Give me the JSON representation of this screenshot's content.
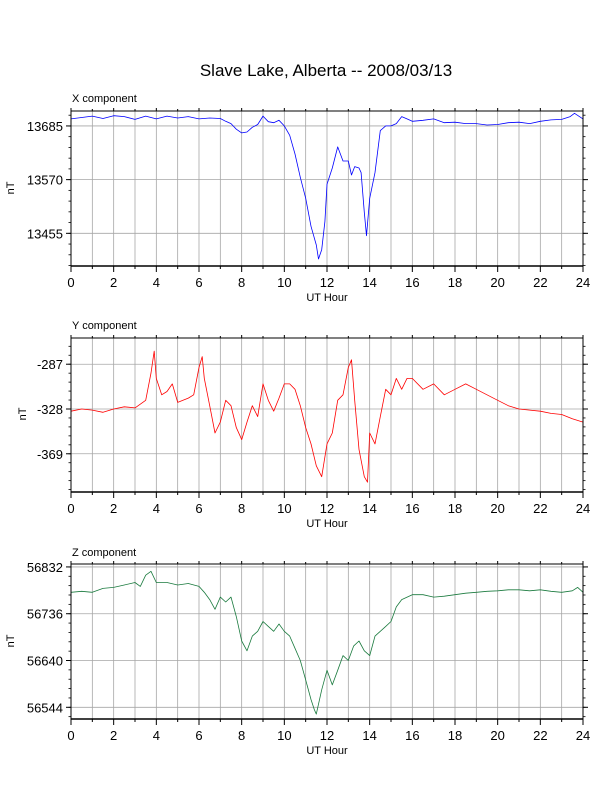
{
  "page_title": "Slave Lake, Alberta -- 2008/03/13",
  "chart_data": [
    {
      "type": "line",
      "panel_label": "X component",
      "xlabel": "UT Hour",
      "ylabel": "nT",
      "xlim": [
        0,
        24
      ],
      "x_ticks": [
        0,
        2,
        4,
        6,
        8,
        10,
        12,
        14,
        16,
        18,
        20,
        22,
        24
      ],
      "ylim": [
        13385,
        13717
      ],
      "y_ticks": [
        13455,
        13570,
        13685
      ],
      "grid": true,
      "series": [
        {
          "color": "#0000ff",
          "x": [
            0,
            0.5,
            1,
            1.5,
            2,
            2.5,
            3,
            3.5,
            4,
            4.5,
            5,
            5.5,
            6,
            6.5,
            7,
            7.25,
            7.5,
            7.75,
            8,
            8.25,
            8.5,
            8.75,
            9,
            9.25,
            9.5,
            9.75,
            10,
            10.25,
            10.5,
            10.75,
            11,
            11.25,
            11.5,
            11.6,
            11.75,
            11.9,
            12,
            12.25,
            12.5,
            12.75,
            13,
            13.15,
            13.3,
            13.5,
            13.6,
            13.75,
            13.85,
            14,
            14.25,
            14.5,
            14.75,
            15,
            15.25,
            15.5,
            15.75,
            16,
            16.5,
            17,
            17.5,
            18,
            18.5,
            19,
            19.5,
            20,
            20.5,
            21,
            21.5,
            22,
            22.5,
            23,
            23.4,
            23.6,
            24
          ],
          "y": [
            13700,
            13703,
            13706,
            13701,
            13707,
            13705,
            13699,
            13706,
            13700,
            13706,
            13702,
            13705,
            13700,
            13702,
            13701,
            13695,
            13690,
            13678,
            13670,
            13672,
            13682,
            13688,
            13706,
            13694,
            13692,
            13697,
            13685,
            13665,
            13625,
            13575,
            13530,
            13470,
            13430,
            13400,
            13420,
            13480,
            13560,
            13595,
            13640,
            13610,
            13610,
            13580,
            13598,
            13595,
            13585,
            13500,
            13450,
            13530,
            13585,
            13675,
            13685,
            13685,
            13690,
            13705,
            13700,
            13695,
            13697,
            13700,
            13692,
            13693,
            13690,
            13690,
            13687,
            13688,
            13692,
            13693,
            13690,
            13695,
            13698,
            13699,
            13705,
            13712,
            13700
          ]
        }
      ]
    },
    {
      "type": "line",
      "panel_label": "Y component",
      "xlabel": "UT Hour",
      "ylabel": "nT",
      "xlim": [
        0,
        24
      ],
      "x_ticks": [
        0,
        2,
        4,
        6,
        8,
        10,
        12,
        14,
        16,
        18,
        20,
        22,
        24
      ],
      "ylim": [
        -404,
        -263
      ],
      "y_ticks": [
        -287,
        -328,
        -369
      ],
      "grid": true,
      "series": [
        {
          "color": "#ff0000",
          "x": [
            0,
            0.5,
            1,
            1.5,
            2,
            2.5,
            3,
            3.5,
            3.75,
            3.9,
            4,
            4.25,
            4.5,
            4.75,
            5,
            5.25,
            5.5,
            5.75,
            6,
            6.15,
            6.25,
            6.5,
            6.75,
            7,
            7.25,
            7.5,
            7.75,
            8,
            8.25,
            8.5,
            8.75,
            9,
            9.25,
            9.5,
            9.75,
            10,
            10.25,
            10.5,
            10.75,
            11,
            11.25,
            11.5,
            11.75,
            12,
            12.25,
            12.5,
            12.75,
            13,
            13.15,
            13.3,
            13.5,
            13.75,
            13.9,
            14,
            14.25,
            14.5,
            14.75,
            15,
            15.25,
            15.5,
            15.75,
            16,
            16.5,
            17,
            17.5,
            18,
            18.5,
            19,
            19.5,
            20,
            20.5,
            21,
            21.5,
            22,
            22.5,
            23,
            23.5,
            24
          ],
          "y": [
            -330,
            -328,
            -329,
            -331,
            -328,
            -326,
            -327,
            -320,
            -295,
            -275,
            -300,
            -315,
            -312,
            -305,
            -322,
            -320,
            -318,
            -315,
            -290,
            -280,
            -300,
            -325,
            -350,
            -340,
            -320,
            -325,
            -345,
            -356,
            -340,
            -325,
            -335,
            -305,
            -320,
            -330,
            -318,
            -305,
            -305,
            -310,
            -325,
            -345,
            -360,
            -380,
            -390,
            -360,
            -350,
            -320,
            -315,
            -290,
            -283,
            -320,
            -365,
            -390,
            -395,
            -350,
            -360,
            -335,
            -310,
            -315,
            -300,
            -310,
            -300,
            -300,
            -310,
            -305,
            -315,
            -310,
            -305,
            -310,
            -315,
            -320,
            -325,
            -328,
            -329,
            -330,
            -332,
            -333,
            -337,
            -340
          ]
        }
      ]
    },
    {
      "type": "line",
      "panel_label": "Z component",
      "xlabel": "UT Hour",
      "ylabel": "nT",
      "xlim": [
        0,
        24
      ],
      "x_ticks": [
        0,
        2,
        4,
        6,
        8,
        10,
        12,
        14,
        16,
        18,
        20,
        22,
        24
      ],
      "ylim": [
        56520,
        56838
      ],
      "y_ticks": [
        56544,
        56640,
        56736,
        56832
      ],
      "grid": true,
      "series": [
        {
          "color": "#1a7a3e",
          "x": [
            0,
            0.5,
            1,
            1.5,
            2,
            2.5,
            3,
            3.25,
            3.5,
            3.75,
            4,
            4.5,
            5,
            5.5,
            6,
            6.25,
            6.5,
            6.75,
            7,
            7.25,
            7.5,
            7.75,
            8,
            8.25,
            8.5,
            8.75,
            9,
            9.25,
            9.5,
            9.75,
            10,
            10.25,
            10.5,
            10.75,
            11,
            11.25,
            11.4,
            11.5,
            11.75,
            12,
            12.25,
            12.5,
            12.75,
            13,
            13.25,
            13.5,
            13.75,
            14,
            14.25,
            14.5,
            14.75,
            15,
            15.25,
            15.5,
            16,
            16.5,
            17,
            17.5,
            18,
            18.5,
            19,
            19.5,
            20,
            20.5,
            21,
            21.5,
            22,
            22.5,
            23,
            23.5,
            23.75,
            24
          ],
          "y": [
            56780,
            56782,
            56780,
            56788,
            56790,
            56795,
            56800,
            56792,
            56815,
            56823,
            56800,
            56800,
            56795,
            56798,
            56792,
            56780,
            56765,
            56745,
            56770,
            56760,
            56770,
            56730,
            56680,
            56660,
            56690,
            56700,
            56720,
            56710,
            56700,
            56715,
            56700,
            56690,
            56665,
            56640,
            56600,
            56560,
            56540,
            56530,
            56580,
            56620,
            56590,
            56620,
            56650,
            56640,
            56670,
            56680,
            56660,
            56650,
            56690,
            56700,
            56710,
            56720,
            56750,
            56765,
            56775,
            56775,
            56770,
            56772,
            56775,
            56778,
            56780,
            56782,
            56783,
            56785,
            56785,
            56783,
            56785,
            56782,
            56780,
            56783,
            56790,
            56780
          ]
        }
      ]
    }
  ]
}
